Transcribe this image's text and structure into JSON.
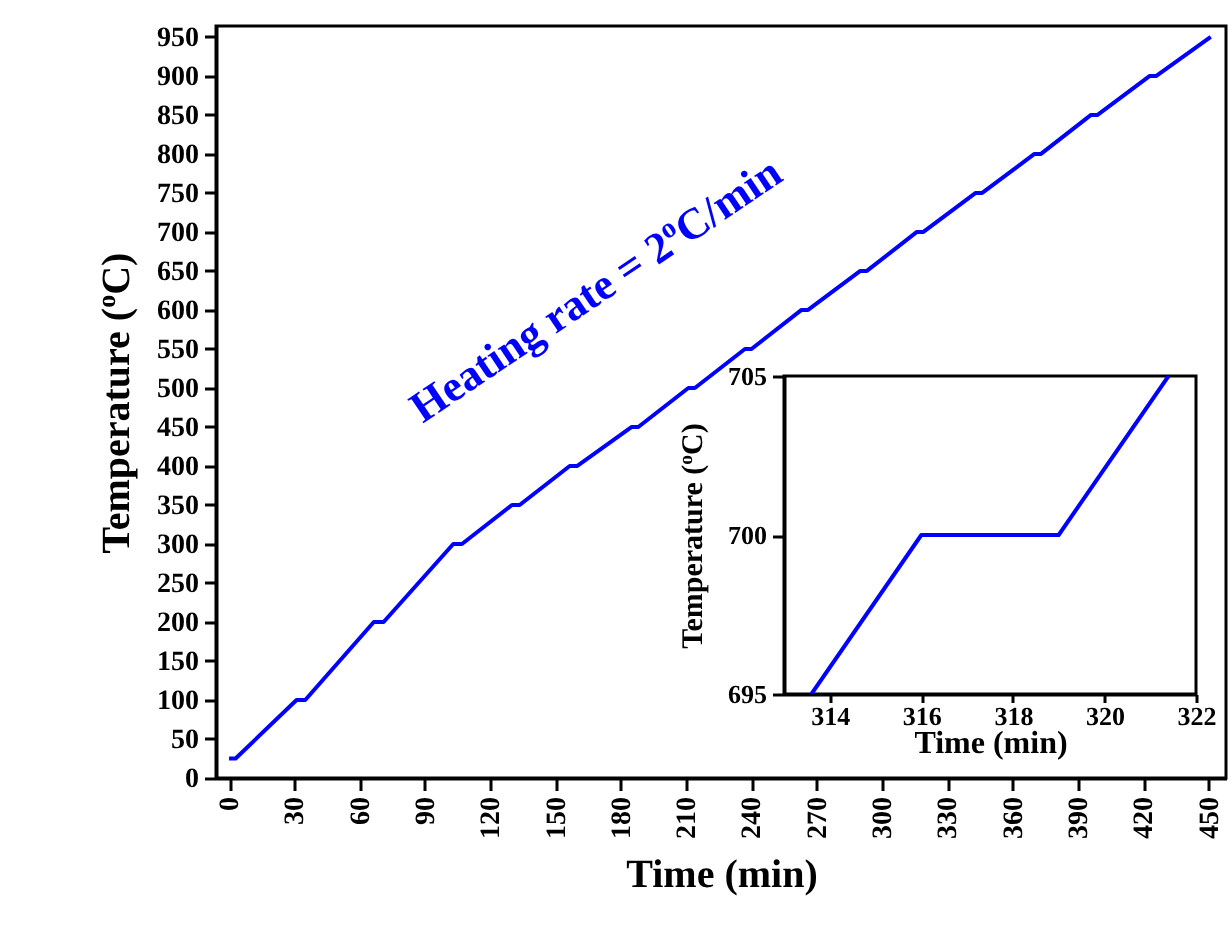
{
  "chart_data": [
    {
      "type": "line",
      "xlabel": "Time (min)",
      "ylabel": "Temperature ($^{o}$C)",
      "annotations": [
        "Heating rate = 2$^{o}$C/min"
      ],
      "x": [
        0,
        3,
        31,
        35,
        66.5,
        71,
        103,
        107,
        130,
        133.5,
        156.5,
        160,
        185,
        188,
        211,
        214,
        237,
        240,
        263,
        266,
        290,
        293,
        316,
        319,
        343,
        346,
        370,
        373,
        396,
        399,
        423,
        426,
        451
      ],
      "series": [
        {
          "color": "#0000ff",
          "values": [
            25,
            25,
            100,
            100,
            200,
            200,
            300,
            300,
            350,
            350,
            400,
            400,
            450,
            450,
            500,
            500,
            550,
            550,
            600,
            600,
            650,
            650,
            700,
            700,
            750,
            750,
            800,
            800,
            850,
            850,
            900,
            900,
            950
          ]
        }
      ],
      "xlim": [
        -6,
        458
      ],
      "ylim": [
        0,
        964
      ],
      "xticks": [
        0,
        30,
        60,
        90,
        120,
        150,
        180,
        210,
        240,
        270,
        300,
        330,
        360,
        390,
        420,
        450
      ],
      "yticks": [
        0,
        50,
        100,
        150,
        200,
        250,
        300,
        350,
        400,
        450,
        500,
        550,
        600,
        650,
        700,
        750,
        800,
        850,
        900,
        950
      ]
    },
    {
      "type": "line",
      "xlabel": "Time (min)",
      "ylabel": "Temperature ($^{o}$C)",
      "x": [
        313.6,
        316,
        319,
        321.4
      ],
      "series": [
        {
          "color": "#0000ff",
          "values": [
            695,
            700,
            700,
            705
          ]
        }
      ],
      "xlim": [
        313,
        322
      ],
      "ylim": [
        695,
        705
      ],
      "xticks": [
        314,
        316,
        318,
        320,
        322
      ],
      "yticks": [
        695,
        700,
        705
      ]
    }
  ]
}
